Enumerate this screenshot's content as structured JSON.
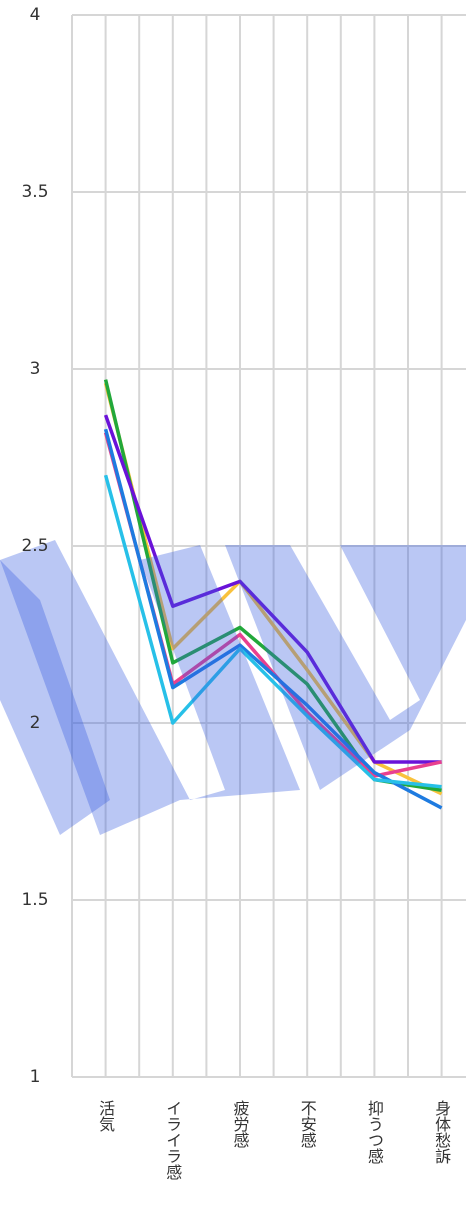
{
  "chart_data": {
    "type": "line",
    "categories": [
      "活気",
      "イライラ感",
      "疲労感",
      "不安感",
      "抑うつ感",
      "身体愁訴"
    ],
    "series": [
      {
        "color": "#f9c23c",
        "values": [
          2.96,
          2.21,
          2.4,
          2.15,
          1.89,
          1.8
        ]
      },
      {
        "color": "#22a83a",
        "values": [
          2.97,
          2.17,
          2.27,
          2.11,
          1.84,
          1.81
        ]
      },
      {
        "color": "#6a12d8",
        "values": [
          2.87,
          2.33,
          2.4,
          2.2,
          1.89,
          1.89
        ]
      },
      {
        "color": "#e8408f",
        "values": [
          2.82,
          2.11,
          2.25,
          2.03,
          1.85,
          1.89
        ]
      },
      {
        "color": "#1e7be0",
        "values": [
          2.83,
          2.1,
          2.22,
          2.05,
          1.86,
          1.76
        ]
      },
      {
        "color": "#27c0e8",
        "values": [
          2.7,
          2.0,
          2.21,
          2.02,
          1.84,
          1.82
        ]
      }
    ],
    "ylim": [
      1,
      4
    ],
    "yticks": [
      1,
      1.5,
      2,
      2.5,
      3,
      3.5,
      4
    ],
    "grid": true
  }
}
